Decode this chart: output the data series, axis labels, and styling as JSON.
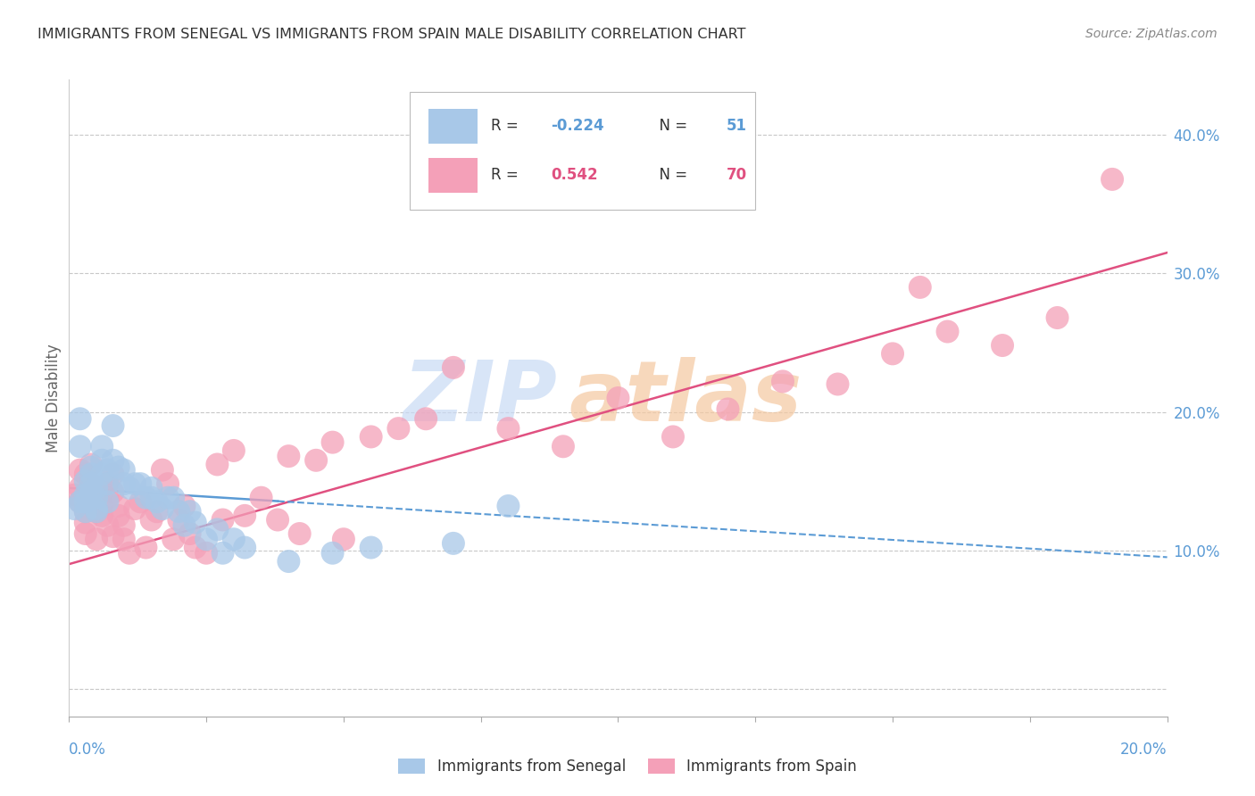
{
  "title": "IMMIGRANTS FROM SENEGAL VS IMMIGRANTS FROM SPAIN MALE DISABILITY CORRELATION CHART",
  "source": "Source: ZipAtlas.com",
  "ylabel": "Male Disability",
  "senegal_R": -0.224,
  "senegal_N": 51,
  "spain_R": 0.542,
  "spain_N": 70,
  "senegal_color": "#a8c8e8",
  "spain_color": "#f4a0b8",
  "senegal_line_color": "#5b9bd5",
  "spain_line_color": "#e05080",
  "background_color": "#ffffff",
  "grid_color": "#c8c8c8",
  "watermark_zip_color": "#c8daf5",
  "watermark_atlas_color": "#f5c8a0",
  "right_tick_color": "#5b9bd5",
  "title_color": "#333333",
  "source_color": "#888888",
  "axis_label_color": "#666666",
  "senegal_points_x": [
    0.001,
    0.002,
    0.002,
    0.003,
    0.003,
    0.003,
    0.004,
    0.004,
    0.004,
    0.005,
    0.005,
    0.005,
    0.006,
    0.006,
    0.006,
    0.007,
    0.007,
    0.007,
    0.008,
    0.008,
    0.009,
    0.01,
    0.01,
    0.011,
    0.012,
    0.013,
    0.014,
    0.015,
    0.015,
    0.016,
    0.017,
    0.018,
    0.019,
    0.02,
    0.021,
    0.022,
    0.023,
    0.025,
    0.027,
    0.028,
    0.03,
    0.032,
    0.04,
    0.048,
    0.055,
    0.07,
    0.08,
    0.002,
    0.003,
    0.004,
    0.005
  ],
  "senegal_points_y": [
    0.13,
    0.195,
    0.175,
    0.15,
    0.14,
    0.135,
    0.155,
    0.16,
    0.148,
    0.145,
    0.138,
    0.13,
    0.175,
    0.165,
    0.155,
    0.158,
    0.148,
    0.135,
    0.19,
    0.165,
    0.16,
    0.158,
    0.148,
    0.145,
    0.148,
    0.148,
    0.138,
    0.145,
    0.138,
    0.135,
    0.13,
    0.138,
    0.138,
    0.128,
    0.118,
    0.128,
    0.12,
    0.108,
    0.115,
    0.098,
    0.108,
    0.102,
    0.092,
    0.098,
    0.102,
    0.105,
    0.132,
    0.135,
    0.128,
    0.142,
    0.128
  ],
  "spain_points_x": [
    0.001,
    0.002,
    0.002,
    0.003,
    0.003,
    0.003,
    0.004,
    0.004,
    0.005,
    0.005,
    0.005,
    0.006,
    0.006,
    0.007,
    0.007,
    0.008,
    0.008,
    0.009,
    0.01,
    0.01,
    0.011,
    0.012,
    0.013,
    0.014,
    0.015,
    0.016,
    0.017,
    0.018,
    0.019,
    0.02,
    0.021,
    0.022,
    0.023,
    0.025,
    0.027,
    0.028,
    0.03,
    0.032,
    0.035,
    0.038,
    0.04,
    0.042,
    0.045,
    0.048,
    0.05,
    0.055,
    0.06,
    0.065,
    0.07,
    0.08,
    0.09,
    0.1,
    0.11,
    0.12,
    0.13,
    0.14,
    0.15,
    0.155,
    0.16,
    0.17,
    0.18,
    0.19,
    0.003,
    0.004,
    0.006,
    0.007,
    0.008,
    0.009,
    0.002,
    0.004
  ],
  "spain_points_y": [
    0.14,
    0.135,
    0.145,
    0.128,
    0.12,
    0.112,
    0.135,
    0.148,
    0.138,
    0.128,
    0.108,
    0.132,
    0.125,
    0.138,
    0.118,
    0.142,
    0.11,
    0.132,
    0.108,
    0.118,
    0.098,
    0.13,
    0.135,
    0.102,
    0.122,
    0.128,
    0.158,
    0.148,
    0.108,
    0.122,
    0.132,
    0.112,
    0.102,
    0.098,
    0.162,
    0.122,
    0.172,
    0.125,
    0.138,
    0.122,
    0.168,
    0.112,
    0.165,
    0.178,
    0.108,
    0.182,
    0.188,
    0.195,
    0.232,
    0.188,
    0.175,
    0.21,
    0.182,
    0.202,
    0.222,
    0.22,
    0.242,
    0.29,
    0.258,
    0.248,
    0.268,
    0.368,
    0.155,
    0.162,
    0.142,
    0.148,
    0.155,
    0.125,
    0.158,
    0.138
  ],
  "senegal_trend_x": [
    0.0,
    0.2
  ],
  "senegal_trend_y": [
    0.145,
    0.095
  ],
  "spain_trend_x": [
    0.0,
    0.2
  ],
  "spain_trend_y": [
    0.09,
    0.315
  ],
  "xlim": [
    0.0,
    0.2
  ],
  "ylim": [
    -0.02,
    0.44
  ],
  "right_ytick_vals": [
    0.0,
    0.1,
    0.2,
    0.3,
    0.4
  ],
  "right_yticklabels": [
    "",
    "10.0%",
    "20.0%",
    "30.0%",
    "40.0%"
  ]
}
